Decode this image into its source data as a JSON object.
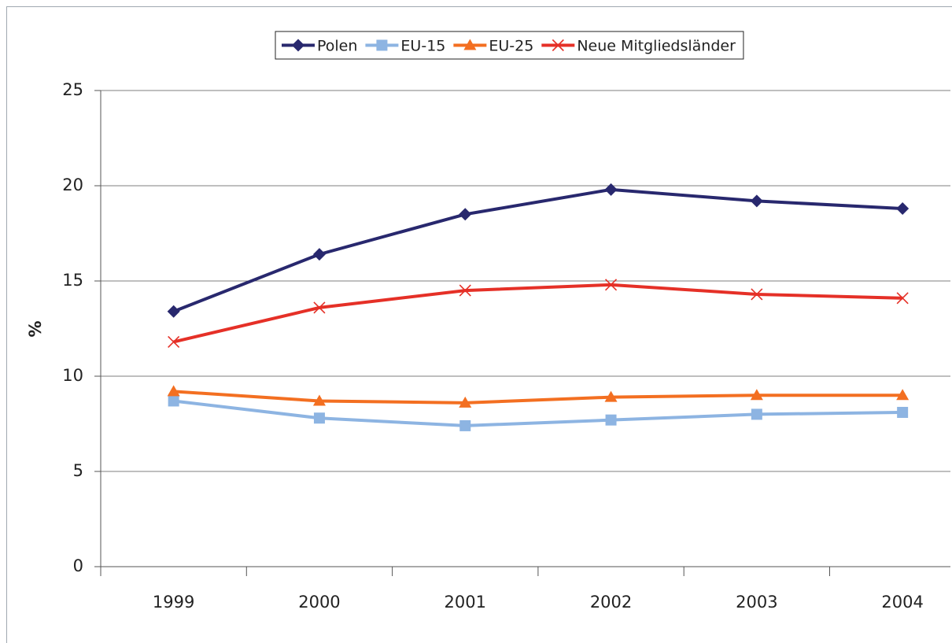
{
  "chart_data": {
    "type": "line",
    "ylabel": "%",
    "categories": [
      "1999",
      "2000",
      "2001",
      "2002",
      "2003",
      "2004"
    ],
    "series": [
      {
        "name": "Polen",
        "color": "#28286e",
        "marker": "diamond",
        "values": [
          13.4,
          16.4,
          18.5,
          19.8,
          19.2,
          18.8
        ]
      },
      {
        "name": "EU-15",
        "color": "#8db4e2",
        "marker": "square",
        "values": [
          8.7,
          7.8,
          7.4,
          7.7,
          8.0,
          8.1
        ]
      },
      {
        "name": "EU-25",
        "color": "#f36f21",
        "marker": "triangle",
        "values": [
          9.2,
          8.7,
          8.6,
          8.9,
          9.0,
          9.0
        ]
      },
      {
        "name": "Neue Mitgliedsländer",
        "color": "#e53027",
        "marker": "x",
        "values": [
          11.8,
          13.6,
          14.5,
          14.8,
          14.3,
          14.1
        ]
      }
    ],
    "ylim": [
      0,
      25
    ],
    "yticks": [
      0,
      5,
      10,
      15,
      20,
      25
    ],
    "grid": true,
    "legend": "top"
  }
}
